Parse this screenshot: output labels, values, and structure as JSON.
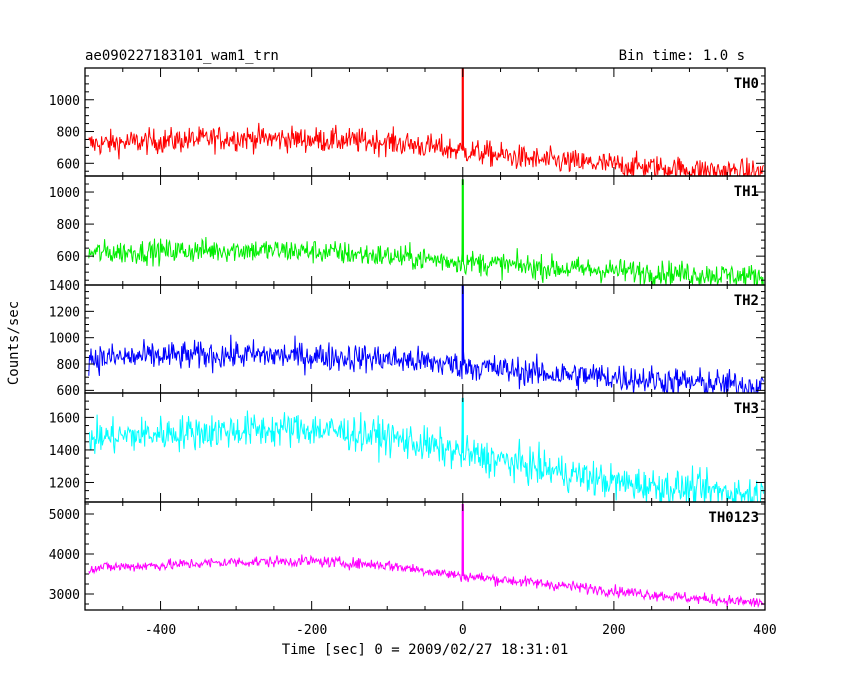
{
  "header": {
    "title": "ae090227183101_wam1_trn",
    "bin_time": "Bin time: 1.0 s"
  },
  "chart_data": {
    "type": "line",
    "title": "ae090227183101_wam1_trn",
    "subtitle": "Bin time: 1.0 s",
    "xlabel": "Time [sec] 0 = 2009/02/27 18:31:01",
    "ylabel": "Counts/sec",
    "xlim": [
      -500,
      400
    ],
    "x_ticks": [
      -400,
      -200,
      0,
      200,
      400
    ],
    "grid": false,
    "panels": [
      {
        "name": "TH0",
        "color": "#ff0000",
        "ylim": [
          520,
          1200
        ],
        "y_ticks": [
          600,
          800,
          1000
        ],
        "trend": [
          [
            -500,
            720
          ],
          [
            -400,
            740
          ],
          [
            -300,
            760
          ],
          [
            -200,
            750
          ],
          [
            -100,
            735
          ],
          [
            0,
            680
          ],
          [
            100,
            620
          ],
          [
            200,
            590
          ],
          [
            300,
            560
          ],
          [
            400,
            540
          ]
        ],
        "noise": 40,
        "spike": {
          "x": 0,
          "peak": 1200
        }
      },
      {
        "name": "TH1",
        "color": "#00ee00",
        "ylim": [
          420,
          1100
        ],
        "y_ticks": [
          600,
          800,
          1000
        ],
        "trend": [
          [
            -500,
            620
          ],
          [
            -400,
            630
          ],
          [
            -300,
            640
          ],
          [
            -200,
            630
          ],
          [
            -100,
            600
          ],
          [
            0,
            565
          ],
          [
            100,
            530
          ],
          [
            200,
            510
          ],
          [
            300,
            490
          ],
          [
            400,
            470
          ]
        ],
        "noise": 38,
        "spike": {
          "x": 0,
          "peak": 1080
        }
      },
      {
        "name": "TH2",
        "color": "#0000ff",
        "ylim": [
          580,
          1400
        ],
        "y_ticks": [
          600,
          800,
          1000,
          1200,
          1400
        ],
        "trend": [
          [
            -500,
            840
          ],
          [
            -400,
            860
          ],
          [
            -300,
            870
          ],
          [
            -200,
            860
          ],
          [
            -100,
            840
          ],
          [
            0,
            790
          ],
          [
            100,
            730
          ],
          [
            200,
            700
          ],
          [
            300,
            660
          ],
          [
            400,
            630
          ]
        ],
        "noise": 55,
        "spike": {
          "x": 0,
          "peak": 1400
        }
      },
      {
        "name": "TH3",
        "color": "#00ffff",
        "ylim": [
          1080,
          1750
        ],
        "y_ticks": [
          1200,
          1400,
          1600
        ],
        "trend": [
          [
            -500,
            1470
          ],
          [
            -400,
            1500
          ],
          [
            -300,
            1520
          ],
          [
            -200,
            1530
          ],
          [
            -100,
            1480
          ],
          [
            0,
            1380
          ],
          [
            100,
            1290
          ],
          [
            200,
            1200
          ],
          [
            300,
            1160
          ],
          [
            400,
            1120
          ]
        ],
        "noise": 55,
        "spike": {
          "x": 0,
          "peak": 1720
        }
      },
      {
        "name": "TH0123",
        "color": "#ff00ff",
        "ylim": [
          2600,
          5300
        ],
        "y_ticks": [
          3000,
          4000,
          5000
        ],
        "trend": [
          [
            -500,
            3650
          ],
          [
            -400,
            3720
          ],
          [
            -300,
            3800
          ],
          [
            -200,
            3820
          ],
          [
            -100,
            3720
          ],
          [
            0,
            3450
          ],
          [
            100,
            3270
          ],
          [
            200,
            3080
          ],
          [
            300,
            2900
          ],
          [
            400,
            2770
          ]
        ],
        "noise": 70,
        "spike": {
          "x": 0,
          "peak": 5250
        }
      }
    ]
  }
}
